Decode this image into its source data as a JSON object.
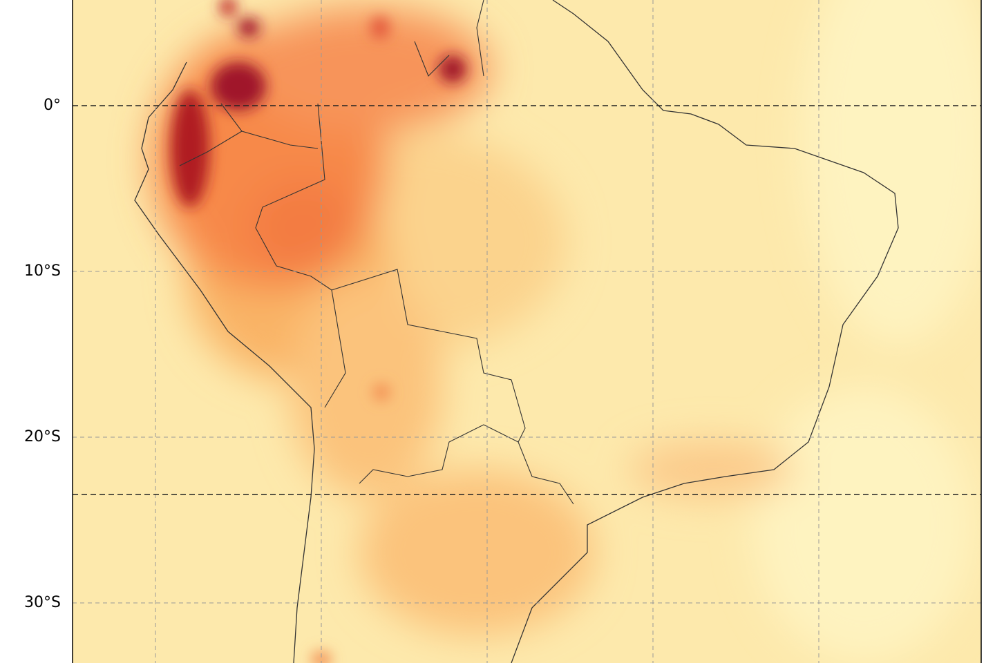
{
  "map": {
    "lat_labels": [
      "0°",
      "10°S",
      "20°S",
      "30°S"
    ]
  }
}
